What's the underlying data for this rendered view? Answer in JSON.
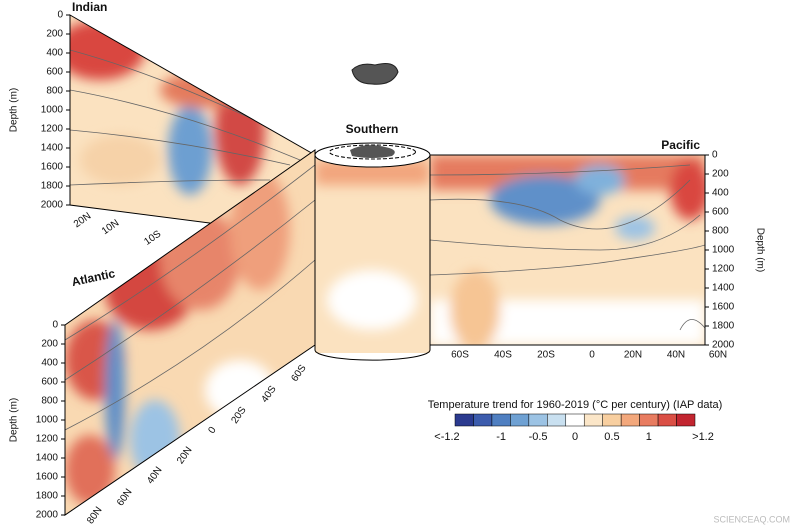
{
  "panels": {
    "indian": {
      "name": "Indian",
      "depth_label": "Depth (m)",
      "depth_ticks": [
        "0",
        "200",
        "400",
        "600",
        "800",
        "1000",
        "1200",
        "1400",
        "1600",
        "1800",
        "2000"
      ],
      "lat_ticks": [
        "20N",
        "10N",
        "10S"
      ]
    },
    "atlantic": {
      "name": "Atlantic",
      "depth_label": "Depth (m)",
      "depth_ticks": [
        "0",
        "200",
        "400",
        "600",
        "800",
        "1000",
        "1200",
        "1400",
        "1600",
        "1800",
        "2000"
      ],
      "lat_ticks": [
        "80N",
        "60N",
        "40N",
        "20N",
        "0",
        "20S",
        "40S",
        "60S"
      ]
    },
    "southern": {
      "name": "Southern"
    },
    "pacific": {
      "name": "Pacific",
      "depth_label": "Depth (m)",
      "depth_ticks": [
        "0",
        "200",
        "400",
        "600",
        "800",
        "1000",
        "1200",
        "1400",
        "1600",
        "1800",
        "2000"
      ],
      "lat_ticks": [
        "60S",
        "40S",
        "20S",
        "0",
        "20N",
        "40N",
        "60N"
      ]
    }
  },
  "colorbar": {
    "title": "Temperature trend for 1960-2019 (°C per century) (IAP data)",
    "labels": [
      "<-1.2",
      "-1",
      "-0.5",
      "0",
      "0.5",
      "1",
      ">1.2"
    ],
    "colors": [
      "#2b3a8f",
      "#3c5cad",
      "#4f7fc1",
      "#6fa1d3",
      "#9cc3e4",
      "#c9e0f0",
      "#ffffff",
      "#fbe6c8",
      "#f8cfa0",
      "#f3a87c",
      "#e87c60",
      "#da4f45",
      "#c22530"
    ]
  },
  "watermark": "SCIENCEAQ.COM"
}
